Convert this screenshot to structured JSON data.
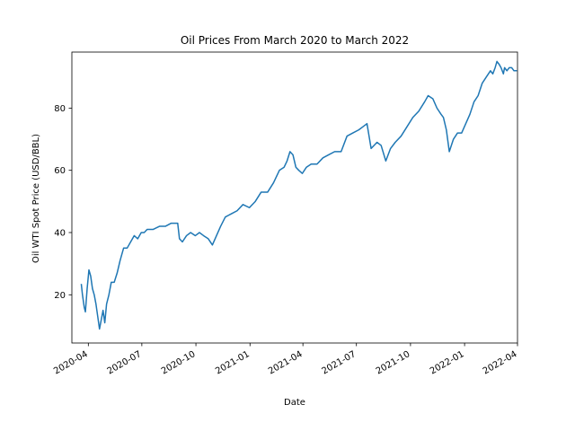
{
  "chart_data": {
    "type": "line",
    "title": "Oil Prices From March 2020 to March 2022",
    "xlabel": "Date",
    "ylabel": "Oil WTI Spot Price (USD/BBL)",
    "xlim": [
      "2020-03-04",
      "2022-04-01"
    ],
    "ylim": [
      4.5,
      98
    ],
    "x_ticks": [
      "2020-04",
      "2020-07",
      "2020-10",
      "2021-01",
      "2021-04",
      "2021-07",
      "2021-10",
      "2022-01",
      "2022-04"
    ],
    "y_ticks": [
      20,
      40,
      60,
      80
    ],
    "grid": false,
    "line_color": "#1f77b4",
    "series": [
      {
        "x": [
          "2020-03-20",
          "2020-03-22",
          "2020-03-25",
          "2020-03-27",
          "2020-03-30",
          "2020-04-02",
          "2020-04-05",
          "2020-04-08",
          "2020-04-11",
          "2020-04-14",
          "2020-04-17",
          "2020-04-20",
          "2020-04-23",
          "2020-04-26",
          "2020-04-29",
          "2020-05-02",
          "2020-05-06",
          "2020-05-10",
          "2020-05-15",
          "2020-05-20",
          "2020-05-25",
          "2020-05-31",
          "2020-06-06",
          "2020-06-12",
          "2020-06-18",
          "2020-06-24",
          "2020-06-30",
          "2020-07-05",
          "2020-07-10",
          "2020-07-20",
          "2020-07-31",
          "2020-08-10",
          "2020-08-20",
          "2020-08-31",
          "2020-09-03",
          "2020-09-08",
          "2020-09-15",
          "2020-09-22",
          "2020-09-30",
          "2020-10-07",
          "2020-10-14",
          "2020-10-22",
          "2020-10-29",
          "2020-11-05",
          "2020-11-12",
          "2020-11-20",
          "2020-11-30",
          "2020-12-10",
          "2020-12-20",
          "2020-12-31",
          "2021-01-10",
          "2021-01-20",
          "2021-01-31",
          "2021-02-10",
          "2021-02-20",
          "2021-02-28",
          "2021-03-05",
          "2021-03-10",
          "2021-03-15",
          "2021-03-20",
          "2021-03-25",
          "2021-03-31",
          "2021-04-07",
          "2021-04-15",
          "2021-04-25",
          "2021-05-05",
          "2021-05-15",
          "2021-05-25",
          "2021-06-05",
          "2021-06-15",
          "2021-06-25",
          "2021-07-05",
          "2021-07-12",
          "2021-07-19",
          "2021-07-26",
          "2021-08-05",
          "2021-08-12",
          "2021-08-20",
          "2021-08-28",
          "2021-09-05",
          "2021-09-15",
          "2021-09-25",
          "2021-10-05",
          "2021-10-15",
          "2021-10-25",
          "2021-10-31",
          "2021-11-08",
          "2021-11-15",
          "2021-11-22",
          "2021-11-26",
          "2021-12-01",
          "2021-12-06",
          "2021-12-13",
          "2021-12-20",
          "2021-12-27",
          "2022-01-03",
          "2022-01-10",
          "2022-01-17",
          "2022-01-24",
          "2022-01-31",
          "2022-02-07",
          "2022-02-14",
          "2022-02-18",
          "2022-02-22",
          "2022-02-25",
          "2022-03-01",
          "2022-03-04",
          "2022-03-06",
          "2022-03-08",
          "2022-03-10",
          "2022-03-14",
          "2022-03-18",
          "2022-03-22",
          "2022-03-26",
          "2022-03-31"
        ],
        "y": [
          23.5,
          20,
          16,
          14.5,
          22,
          28,
          26,
          22,
          20,
          17,
          13,
          9,
          12,
          15,
          11,
          17,
          20,
          24,
          24,
          27,
          31,
          35,
          35,
          37,
          39,
          38,
          40,
          40,
          41,
          41,
          42,
          42,
          43,
          43,
          38,
          37,
          39,
          40,
          39,
          40,
          39,
          38,
          36,
          39,
          42,
          45,
          46,
          47,
          49,
          48,
          50,
          53,
          53,
          56,
          60,
          61,
          63,
          66,
          65,
          61,
          60,
          59,
          61,
          62,
          62,
          64,
          65,
          66,
          66,
          71,
          72,
          73,
          74,
          75,
          67,
          69,
          68,
          63,
          67,
          69,
          71,
          74,
          77,
          79,
          82,
          84,
          83,
          80,
          78,
          77,
          73,
          66,
          70,
          72,
          72,
          75,
          78,
          82,
          84,
          88,
          90,
          92,
          91,
          93,
          95,
          94,
          93,
          92,
          91,
          93,
          92,
          93,
          93,
          92,
          92
        ]
      }
    ]
  }
}
